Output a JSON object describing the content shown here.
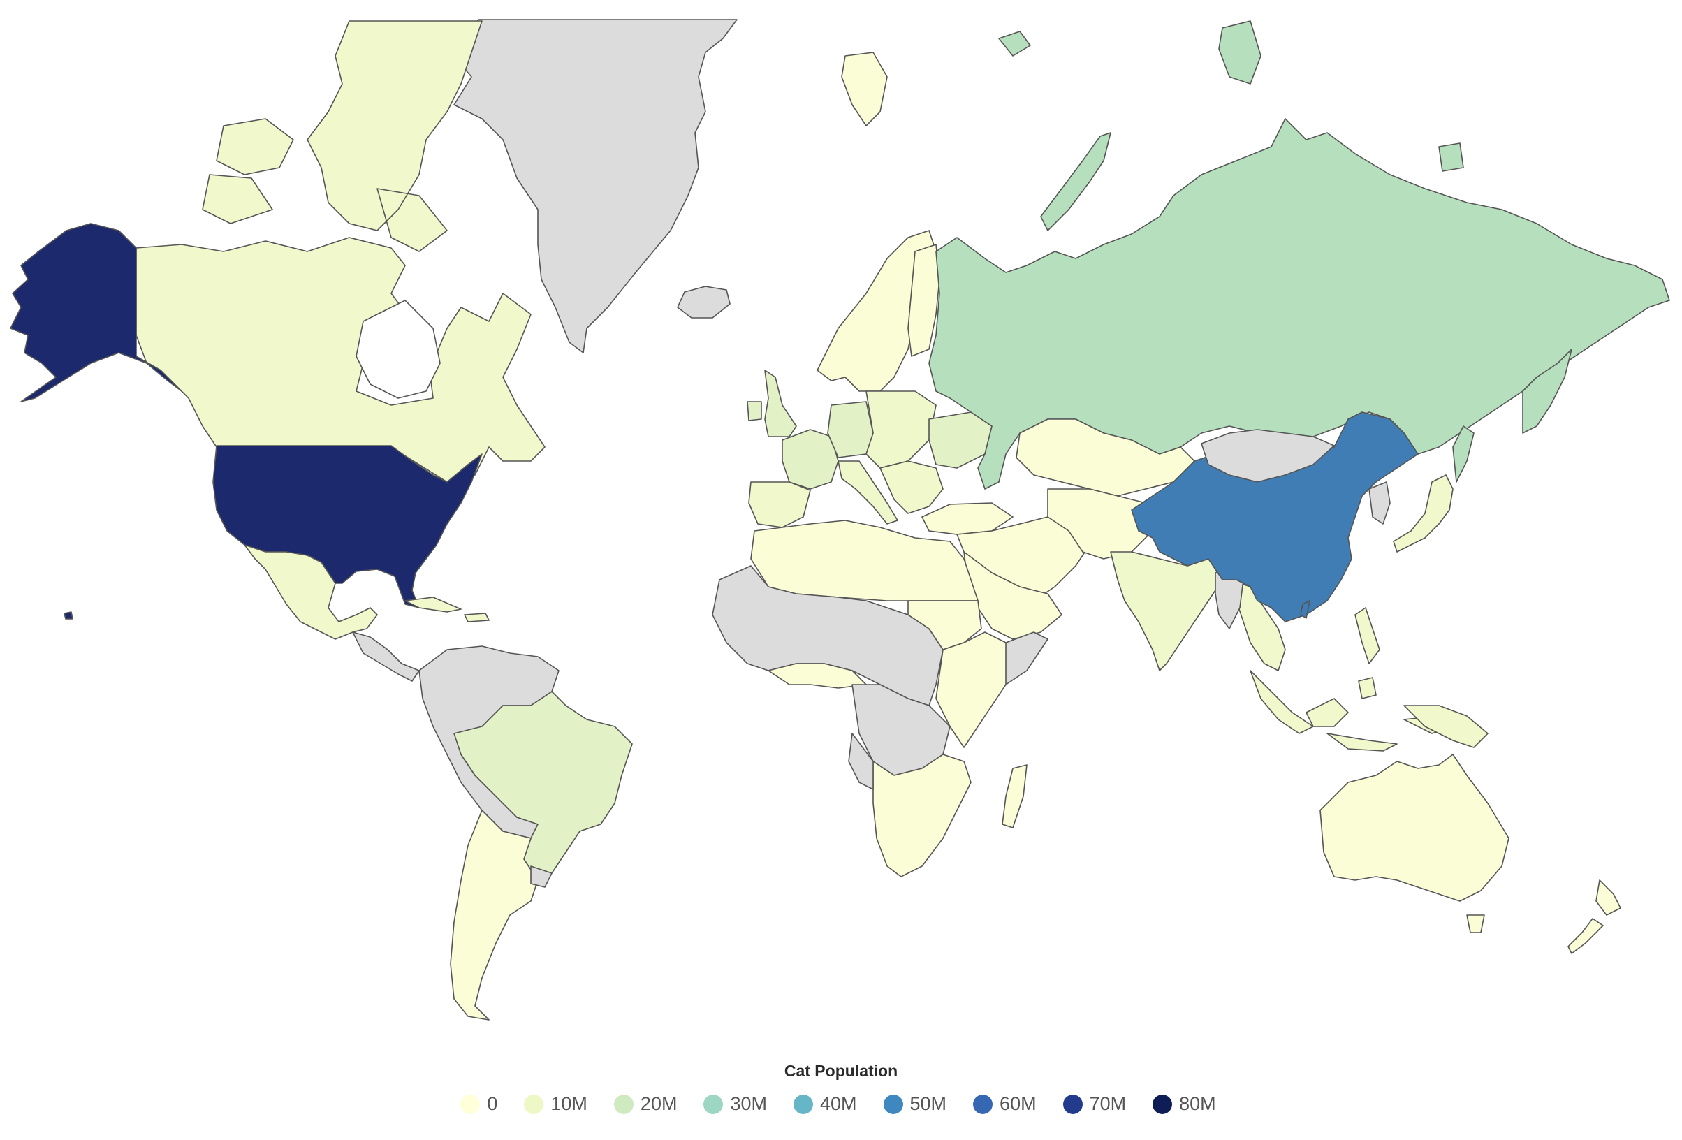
{
  "chart_data": {
    "type": "choropleth",
    "title": "",
    "legend": {
      "title": "Cat Population",
      "placement": "bottom-center",
      "items": [
        {
          "label": "0",
          "color": "#ffffd9"
        },
        {
          "label": "10M",
          "color": "#eef8c7"
        },
        {
          "label": "20M",
          "color": "#cfeac0"
        },
        {
          "label": "30M",
          "color": "#9dd6c2"
        },
        {
          "label": "40M",
          "color": "#66b6c8"
        },
        {
          "label": "50M",
          "color": "#3f87bf"
        },
        {
          "label": "60M",
          "color": "#3567b2"
        },
        {
          "label": "70M",
          "color": "#233b8d"
        },
        {
          "label": "80M",
          "color": "#0f1d56"
        }
      ]
    },
    "no_data_color": "#dcdcdc",
    "regions": [
      {
        "name": "United States",
        "value": 74000000,
        "color": "#1c2a6d"
      },
      {
        "name": "China",
        "value": 58000000,
        "color": "#3f7db4"
      },
      {
        "name": "Russia",
        "value": 23000000,
        "color": "#b6dfbd"
      },
      {
        "name": "Brazil",
        "value": 13000000,
        "color": "#e2f2c6"
      },
      {
        "name": "France",
        "value": 13000000,
        "color": "#e2f2c6"
      },
      {
        "name": "Germany",
        "value": 12000000,
        "color": "#e2f2c6"
      },
      {
        "name": "United Kingdom",
        "value": 11000000,
        "color": "#e2f2c6"
      },
      {
        "name": "Ukraine",
        "value": 10000000,
        "color": "#e2f2c6"
      },
      {
        "name": "Italy",
        "value": 9000000,
        "color": "#eef8cb"
      },
      {
        "name": "India",
        "value": 8000000,
        "color": "#eef8cb"
      },
      {
        "name": "Canada",
        "value": 8000000,
        "color": "#f1f9cc"
      },
      {
        "name": "Australia",
        "value": 4000000,
        "color": "#fbfdd6"
      },
      {
        "name": "Greenland",
        "value": null,
        "color": "#dcdcdc"
      }
    ]
  }
}
